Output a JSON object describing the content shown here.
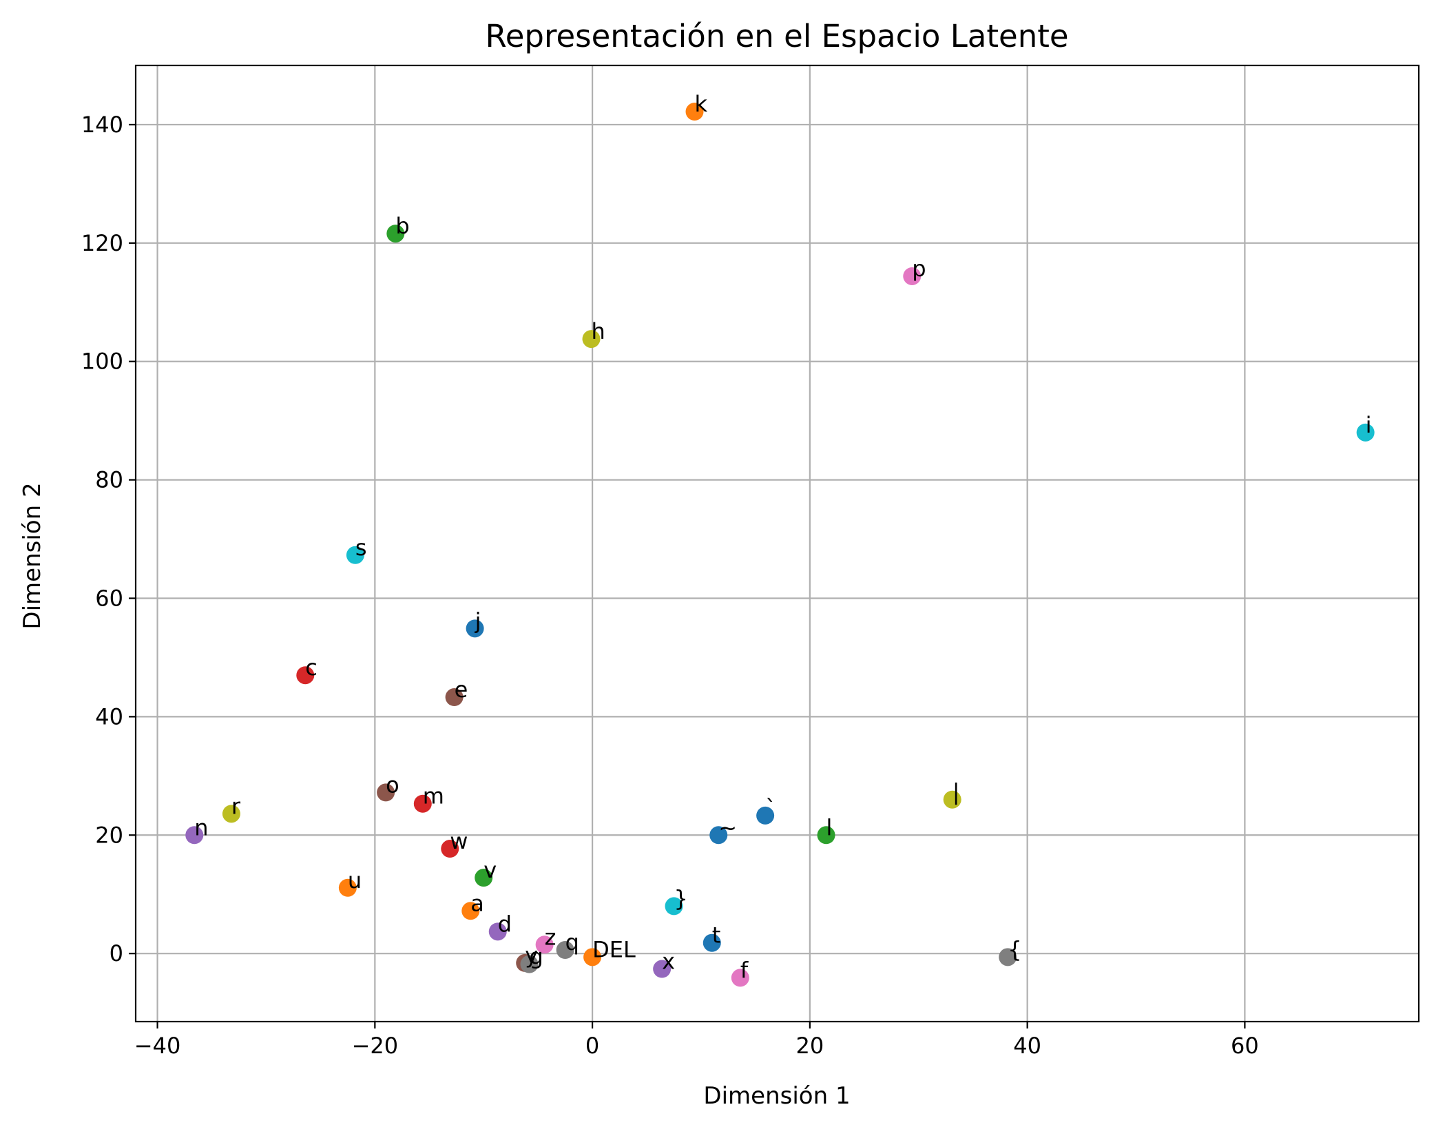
{
  "chart_data": {
    "type": "scatter",
    "title": "Representación en el Espacio Latente",
    "xlabel": "Dimensión 1",
    "ylabel": "Dimensión 2",
    "xlim": [
      -42,
      76
    ],
    "ylim": [
      -11.5,
      150
    ],
    "xticks": [
      -40,
      -20,
      0,
      20,
      40,
      60
    ],
    "yticks": [
      0,
      20,
      40,
      60,
      80,
      100,
      120,
      140
    ],
    "xtick_labels": [
      "−40",
      "−20",
      "0",
      "20",
      "40",
      "60"
    ],
    "ytick_labels": [
      "0",
      "20",
      "40",
      "60",
      "80",
      "100",
      "120",
      "140"
    ],
    "grid": true,
    "legend": "none",
    "points": [
      {
        "label": "k",
        "x": 9.4,
        "y": 142.2,
        "color": "#ff7f0e"
      },
      {
        "label": "b",
        "x": -18.1,
        "y": 121.6,
        "color": "#2ca02c"
      },
      {
        "label": "p",
        "x": 29.4,
        "y": 114.4,
        "color": "#e377c2"
      },
      {
        "label": "h",
        "x": -0.1,
        "y": 103.8,
        "color": "#bcbd22"
      },
      {
        "label": "i",
        "x": 71.1,
        "y": 88.0,
        "color": "#17becf"
      },
      {
        "label": "s",
        "x": -21.8,
        "y": 67.3,
        "color": "#17becf"
      },
      {
        "label": "j",
        "x": -10.8,
        "y": 54.9,
        "color": "#1f77b4"
      },
      {
        "label": "c",
        "x": -26.4,
        "y": 47.0,
        "color": "#d62728"
      },
      {
        "label": "e",
        "x": -12.7,
        "y": 43.3,
        "color": "#8c564b"
      },
      {
        "label": "o",
        "x": -19.0,
        "y": 27.2,
        "color": "#8c564b"
      },
      {
        "label": "m",
        "x": -15.6,
        "y": 25.3,
        "color": "#d62728"
      },
      {
        "label": "r",
        "x": -33.2,
        "y": 23.6,
        "color": "#bcbd22"
      },
      {
        "label": "n",
        "x": -36.6,
        "y": 20.0,
        "color": "#9467bd"
      },
      {
        "label": "w",
        "x": -13.1,
        "y": 17.7,
        "color": "#d62728"
      },
      {
        "label": "v",
        "x": -10.0,
        "y": 12.8,
        "color": "#2ca02c"
      },
      {
        "label": "u",
        "x": -22.5,
        "y": 11.1,
        "color": "#ff7f0e"
      },
      {
        "label": "a",
        "x": -11.2,
        "y": 7.2,
        "color": "#ff7f0e"
      },
      {
        "label": "d",
        "x": -8.7,
        "y": 3.7,
        "color": "#9467bd"
      },
      {
        "label": "z",
        "x": -4.4,
        "y": 1.5,
        "color": "#e377c2"
      },
      {
        "label": "q",
        "x": -2.5,
        "y": 0.6,
        "color": "#7f7f7f"
      },
      {
        "label": "DEL",
        "x": 0.0,
        "y": -0.6,
        "color": "#ff7f0e"
      },
      {
        "label": "y",
        "x": -6.2,
        "y": -1.6,
        "color": "#8c564b"
      },
      {
        "label": "g",
        "x": -5.8,
        "y": -1.8,
        "color": "#7f7f7f"
      },
      {
        "label": "x",
        "x": 6.4,
        "y": -2.6,
        "color": "#9467bd"
      },
      {
        "label": "f",
        "x": 13.6,
        "y": -4.1,
        "color": "#e377c2"
      },
      {
        "label": "t",
        "x": 11.0,
        "y": 1.8,
        "color": "#1f77b4"
      },
      {
        "label": "}",
        "x": 7.5,
        "y": 8.0,
        "color": "#17becf"
      },
      {
        "label": "~",
        "x": 11.6,
        "y": 20.0,
        "color": "#1f77b4"
      },
      {
        "label": "`",
        "x": 15.9,
        "y": 23.3,
        "color": "#1f77b4"
      },
      {
        "label": "l",
        "x": 21.5,
        "y": 20.0,
        "color": "#2ca02c"
      },
      {
        "label": "|",
        "x": 33.1,
        "y": 26.0,
        "color": "#bcbd22"
      },
      {
        "label": "{",
        "x": 38.2,
        "y": -0.6,
        "color": "#7f7f7f"
      }
    ]
  }
}
